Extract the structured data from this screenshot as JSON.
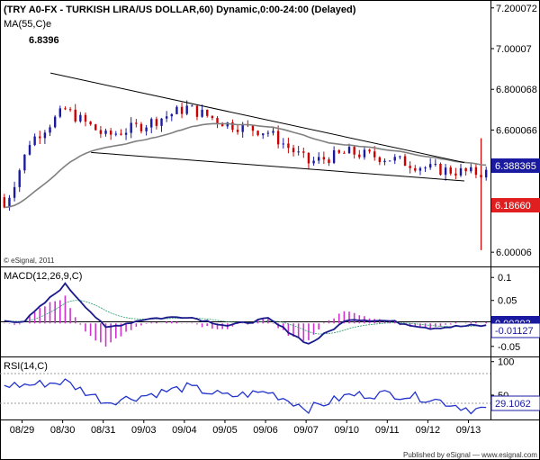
{
  "header": {
    "title": "(TRY A0-FX - TURKISH LIRA/US DOLLAR,60) Dynamic,0:00-24:00 (Delayed)",
    "ma_label": "MA(55,C)e",
    "ma_value": "6.8396",
    "copyright": "© eSignal, 2011"
  },
  "macd_panel": {
    "label": "MACD(12,26,9,C)",
    "value_box": "-0.01127",
    "value_box2": "0.00303"
  },
  "rsi_panel": {
    "label": "RSI(14,C)",
    "value_box": "29.1062"
  },
  "footer": {
    "published": "Published by eSignal — www.esignal.com"
  },
  "price_boxes": {
    "last": "6.388365",
    "low": "6.18660"
  },
  "colors": {
    "up": "#1a1aa0",
    "down": "#cc0000",
    "ma": "#808080",
    "macd": "#1a1a8c",
    "hist": "#cc33cc",
    "rsi": "#2233cc",
    "trend": "#000000",
    "box_blue": "#1a1aa0",
    "box_red": "#e02020"
  },
  "chart_data": [
    {
      "type": "candlestick",
      "title": "(TRY A0-FX - TURKISH LIRA/US DOLLAR,60) Dynamic,0:00-24:00 (Delayed)",
      "x": [
        "08/29",
        "08/30",
        "08/31",
        "09/03",
        "09/04",
        "09/05",
        "09/06",
        "09/07",
        "09/10",
        "09/11",
        "09/12",
        "09/13"
      ],
      "close": [
        6.52,
        6.7,
        6.57,
        6.63,
        6.71,
        6.63,
        6.59,
        6.44,
        6.49,
        6.46,
        6.41,
        6.39
      ],
      "ma_label": "MA(55,C)e",
      "ylim": [
        5.93,
        7.23
      ],
      "y_ticks": [
        "7.200072",
        "7.00007",
        "6.800068",
        "6.600066",
        "6.00006"
      ],
      "trendlines": [
        {
          "from": [
            "08/30",
            6.88
          ],
          "to": [
            "09/13",
            6.44
          ]
        },
        {
          "from": [
            "08/31",
            6.49
          ],
          "to": [
            "09/13",
            6.35
          ]
        }
      ]
    },
    {
      "type": "line",
      "title": "MACD(12,26,9,C)",
      "x": [
        "08/29",
        "08/30",
        "08/31",
        "09/03",
        "09/04",
        "09/05",
        "09/06",
        "09/07",
        "09/10",
        "09/11",
        "09/12",
        "09/13"
      ],
      "macd": [
        0.005,
        0.085,
        -0.01,
        0.01,
        0.015,
        -0.005,
        0.01,
        -0.045,
        0.01,
        0.005,
        -0.01,
        -0.005
      ],
      "ylim": [
        -0.07,
        0.12
      ],
      "y_ticks": [
        "0.1",
        "0.05",
        "-0.05"
      ]
    },
    {
      "type": "line",
      "title": "RSI(14,C)",
      "x": [
        "08/29",
        "08/30",
        "08/31",
        "09/03",
        "09/04",
        "09/05",
        "09/06",
        "09/07",
        "09/10",
        "09/11",
        "09/12",
        "09/13"
      ],
      "rsi": [
        65,
        70,
        40,
        50,
        62,
        48,
        55,
        30,
        50,
        52,
        45,
        29
      ],
      "ylim": [
        15,
        105
      ],
      "y_ticks": [
        "100",
        "50"
      ]
    }
  ]
}
